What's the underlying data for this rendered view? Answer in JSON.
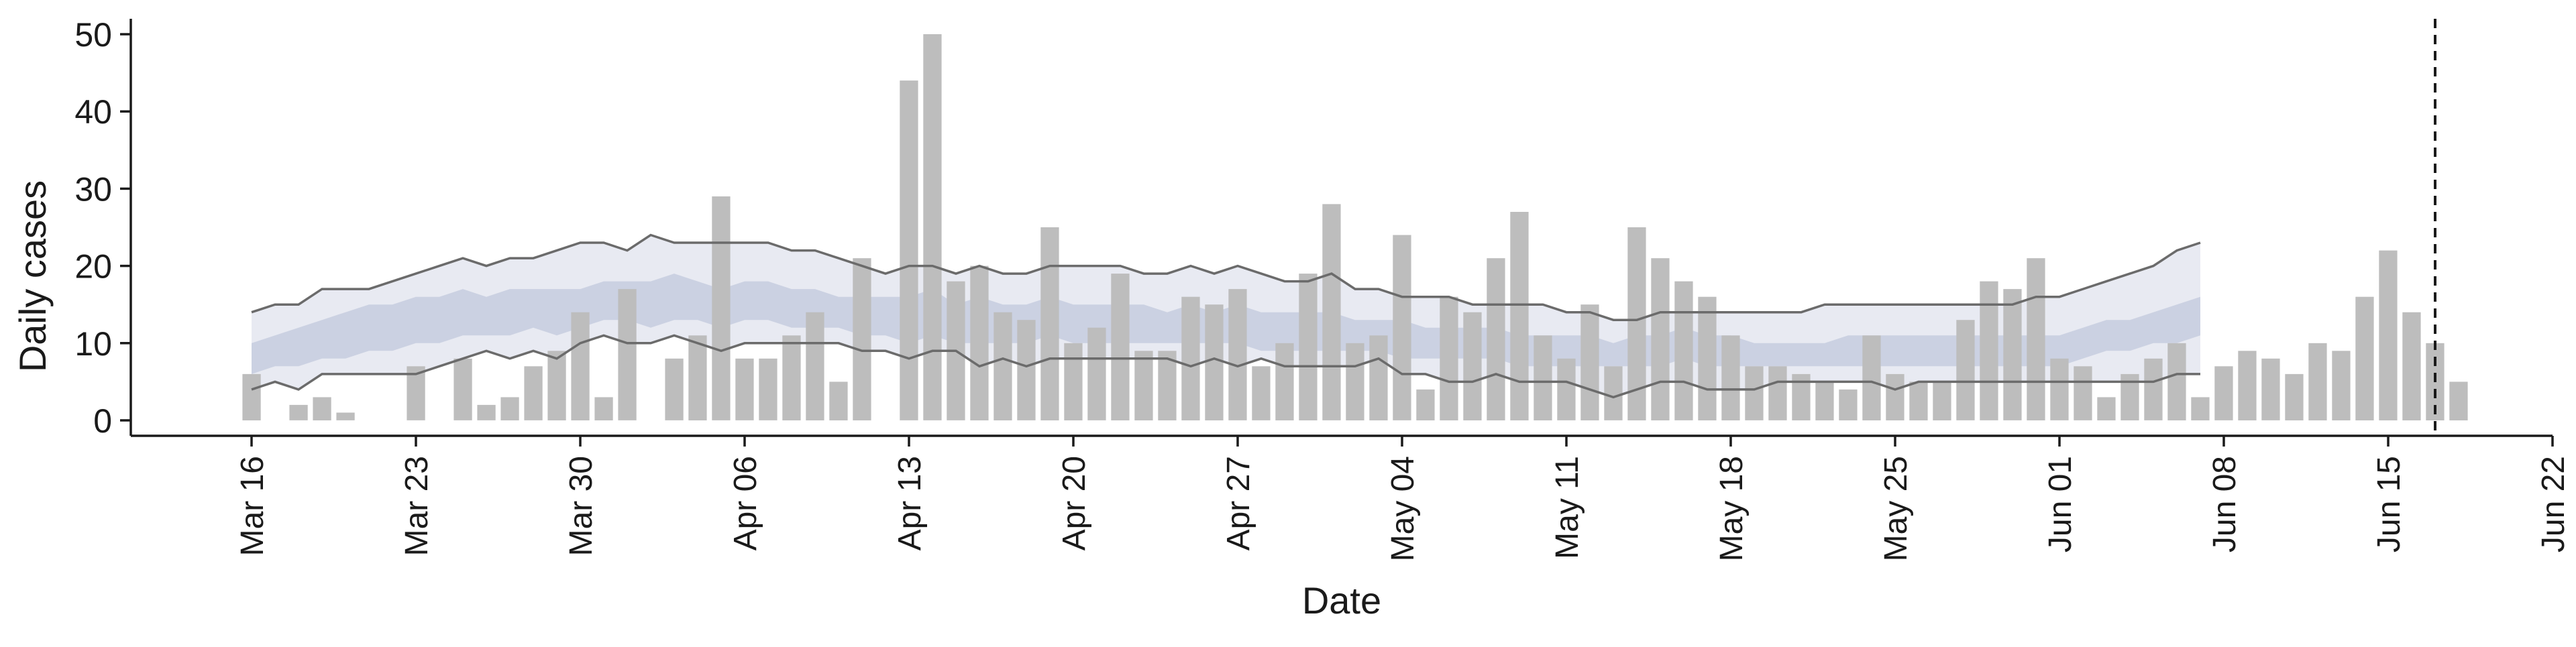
{
  "chart_data": {
    "type": "bar",
    "xlabel": "Date",
    "ylabel": "Daily cases",
    "ylim": [
      -2,
      52
    ],
    "xlim": [
      "2020-03-16",
      "2020-06-22"
    ],
    "grid": false,
    "colors": {
      "bars": "#bdbdbd",
      "inner_band": "#c9d0e0",
      "outer_band": "#e8eaf2",
      "envelope_line": "#6b6b6b",
      "axis": "#1a1a1a"
    },
    "x_ticks": [
      {
        "date": "2020-03-16",
        "label": "Mar 16"
      },
      {
        "date": "2020-03-23",
        "label": "Mar 23"
      },
      {
        "date": "2020-03-30",
        "label": "Mar 30"
      },
      {
        "date": "2020-04-06",
        "label": "Apr 06"
      },
      {
        "date": "2020-04-13",
        "label": "Apr 13"
      },
      {
        "date": "2020-04-20",
        "label": "Apr 20"
      },
      {
        "date": "2020-04-27",
        "label": "Apr 27"
      },
      {
        "date": "2020-05-04",
        "label": "May 04"
      },
      {
        "date": "2020-05-11",
        "label": "May 11"
      },
      {
        "date": "2020-05-18",
        "label": "May 18"
      },
      {
        "date": "2020-05-25",
        "label": "May 25"
      },
      {
        "date": "2020-06-01",
        "label": "Jun 01"
      },
      {
        "date": "2020-06-08",
        "label": "Jun 08"
      },
      {
        "date": "2020-06-15",
        "label": "Jun 15"
      },
      {
        "date": "2020-06-22",
        "label": "Jun 22"
      }
    ],
    "y_ticks": [
      0,
      10,
      20,
      30,
      40,
      50
    ],
    "bars_start": "2020-03-16",
    "daily_cases": [
      6,
      0,
      2,
      3,
      1,
      0,
      0,
      7,
      0,
      8,
      2,
      3,
      7,
      9,
      14,
      3,
      17,
      0,
      8,
      11,
      29,
      8,
      8,
      11,
      14,
      5,
      21,
      0,
      44,
      50,
      18,
      20,
      14,
      13,
      25,
      10,
      12,
      19,
      9,
      9,
      16,
      15,
      17,
      7,
      10,
      19,
      28,
      10,
      11,
      24,
      4,
      16,
      14,
      21,
      27,
      11,
      8,
      15,
      7,
      25,
      21,
      18,
      16,
      11,
      7,
      7,
      6,
      5,
      4,
      11,
      6,
      5,
      5,
      13,
      18,
      17,
      21,
      8,
      7,
      3,
      6,
      8,
      10,
      3,
      7,
      9,
      8,
      6,
      10,
      9,
      16,
      22,
      14,
      10,
      5
    ],
    "bands_start": "2020-03-16",
    "outer_upper": [
      14,
      15,
      15,
      17,
      17,
      17,
      18,
      19,
      20,
      21,
      20,
      21,
      21,
      22,
      23,
      23,
      22,
      24,
      23,
      23,
      23,
      23,
      23,
      22,
      22,
      21,
      20,
      19,
      20,
      20,
      19,
      20,
      19,
      19,
      20,
      20,
      20,
      20,
      19,
      19,
      20,
      19,
      20,
      19,
      18,
      18,
      19,
      17,
      17,
      16,
      16,
      16,
      15,
      15,
      15,
      15,
      14,
      14,
      13,
      13,
      14,
      14,
      14,
      14,
      14,
      14,
      14,
      15,
      15,
      15,
      15,
      15,
      15,
      15,
      15,
      15,
      16,
      16,
      17,
      18,
      19,
      20,
      22,
      23
    ],
    "outer_lower": [
      4,
      5,
      4,
      6,
      6,
      6,
      6,
      6,
      7,
      8,
      9,
      8,
      9,
      8,
      10,
      11,
      10,
      10,
      11,
      10,
      9,
      10,
      10,
      10,
      10,
      10,
      9,
      9,
      8,
      9,
      9,
      7,
      8,
      7,
      8,
      8,
      8,
      8,
      8,
      8,
      7,
      8,
      7,
      8,
      7,
      7,
      7,
      7,
      8,
      6,
      6,
      5,
      5,
      6,
      5,
      5,
      5,
      4,
      3,
      4,
      5,
      5,
      4,
      4,
      4,
      5,
      5,
      5,
      5,
      5,
      4,
      5,
      5,
      5,
      5,
      5,
      5,
      5,
      5,
      5,
      5,
      5,
      6,
      6
    ],
    "inner_upper": [
      10,
      11,
      12,
      13,
      14,
      15,
      15,
      16,
      16,
      17,
      16,
      17,
      17,
      17,
      17,
      18,
      18,
      18,
      19,
      18,
      17,
      18,
      18,
      17,
      17,
      16,
      16,
      16,
      16,
      17,
      15,
      16,
      15,
      15,
      16,
      15,
      15,
      15,
      15,
      14,
      15,
      14,
      15,
      14,
      14,
      14,
      14,
      13,
      13,
      13,
      12,
      12,
      12,
      12,
      11,
      11,
      11,
      11,
      10,
      11,
      11,
      12,
      11,
      11,
      10,
      10,
      10,
      10,
      11,
      11,
      11,
      11,
      11,
      11,
      11,
      11,
      11,
      11,
      12,
      13,
      13,
      14,
      15,
      16
    ],
    "inner_lower": [
      6,
      7,
      7,
      8,
      8,
      9,
      9,
      10,
      10,
      11,
      11,
      11,
      12,
      11,
      12,
      13,
      13,
      12,
      13,
      13,
      12,
      13,
      13,
      12,
      12,
      12,
      11,
      11,
      10,
      11,
      10,
      10,
      10,
      10,
      11,
      10,
      10,
      10,
      10,
      10,
      10,
      10,
      10,
      9,
      9,
      9,
      9,
      9,
      9,
      8,
      8,
      8,
      8,
      8,
      7,
      7,
      7,
      7,
      7,
      7,
      7,
      8,
      7,
      7,
      7,
      7,
      7,
      7,
      7,
      7,
      7,
      7,
      7,
      7,
      7,
      7,
      7,
      7,
      8,
      9,
      9,
      10,
      10,
      11
    ],
    "vline_date": "2020-06-17"
  }
}
